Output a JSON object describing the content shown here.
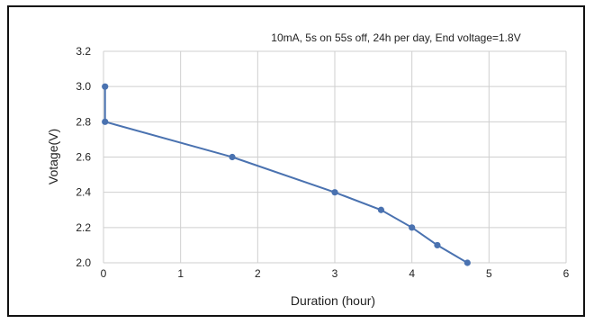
{
  "chart_data": {
    "type": "line",
    "title": "10mA, 5s on 55s off, 24h per day, End voltage=1.8V",
    "xlabel": "Duration (hour)",
    "ylabel": "Votage(V)",
    "xlim": [
      0,
      6
    ],
    "ylim": [
      2.0,
      3.2
    ],
    "xticks": [
      "0",
      "1",
      "2",
      "3",
      "4",
      "5",
      "6"
    ],
    "yticks": [
      "2.0",
      "2.2",
      "2.4",
      "2.6",
      "2.8",
      "3.0",
      "3.2"
    ],
    "grid": true,
    "legend": "none",
    "series": [
      {
        "color": "#4a72b0",
        "x": [
          0.02,
          0.02,
          1.67,
          3.0,
          3.6,
          4.0,
          4.33,
          4.72
        ],
        "y": [
          3.0,
          2.8,
          2.6,
          2.4,
          2.3,
          2.2,
          2.1,
          2.0
        ]
      }
    ]
  }
}
